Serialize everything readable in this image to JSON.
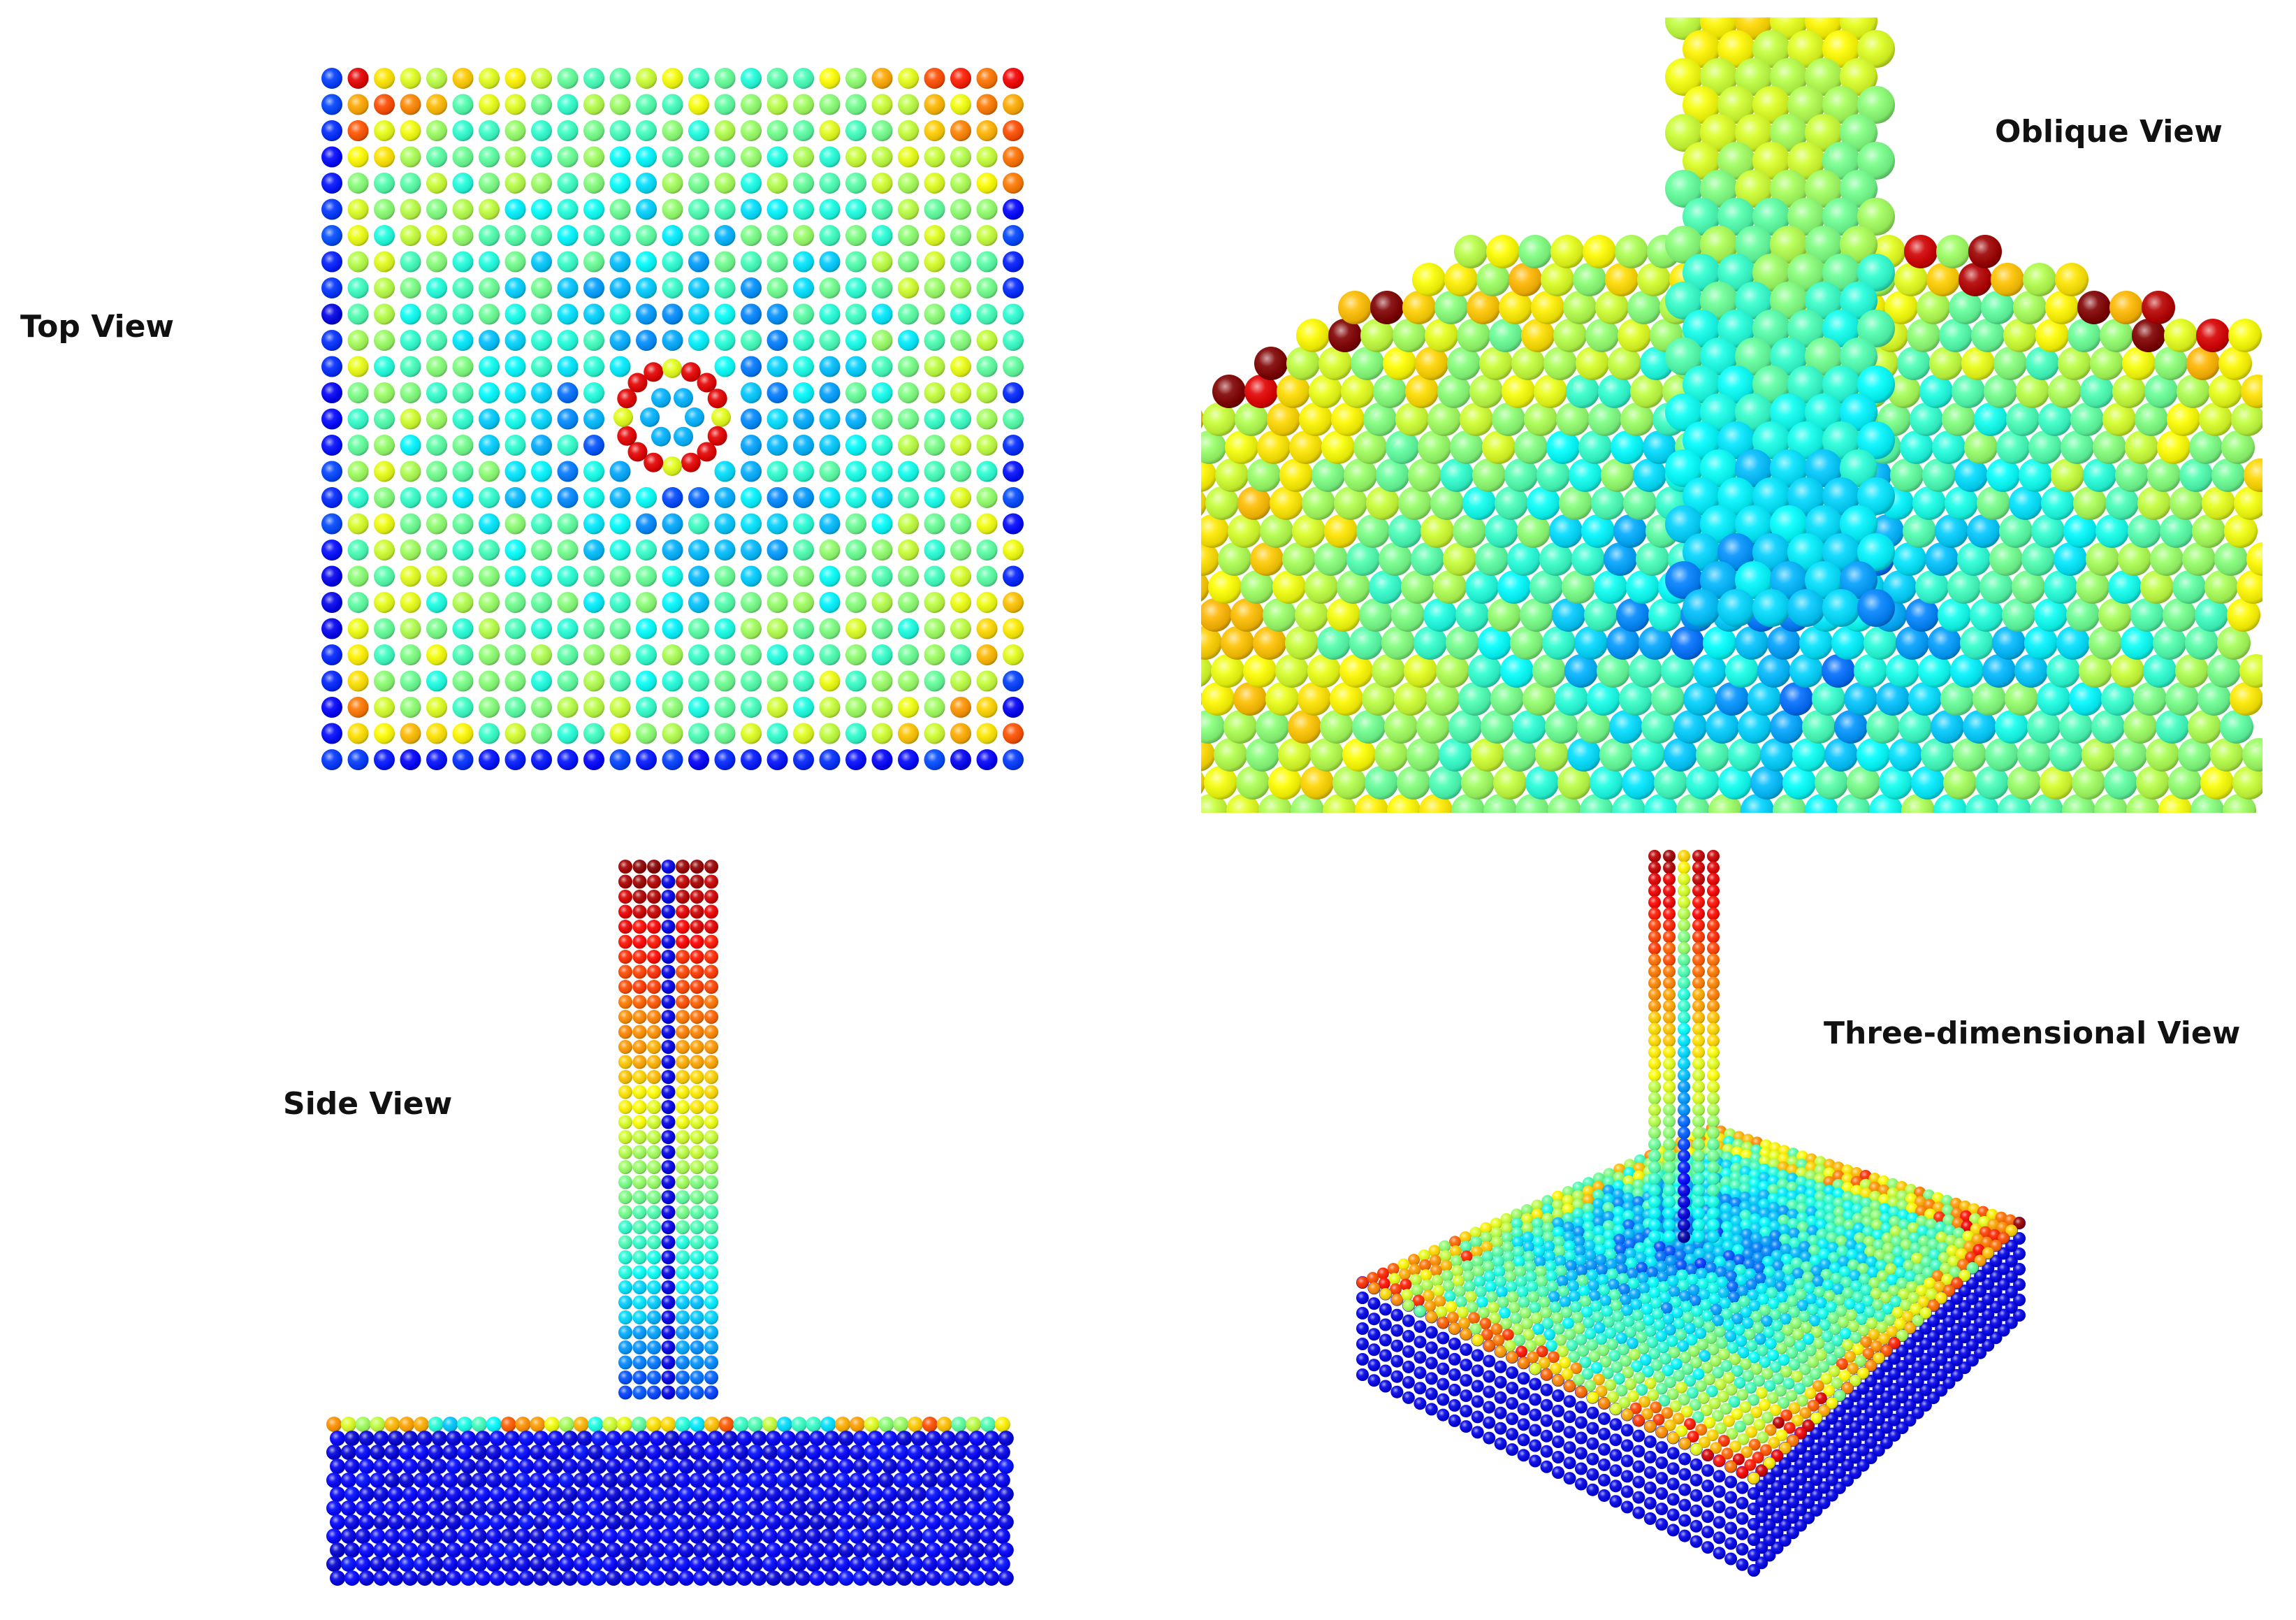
{
  "labels": {
    "top_view": "Top View",
    "oblique_view": "Oblique View",
    "side_view": "Side View",
    "three_dimensional_view": "Three-dimensional View"
  }
}
